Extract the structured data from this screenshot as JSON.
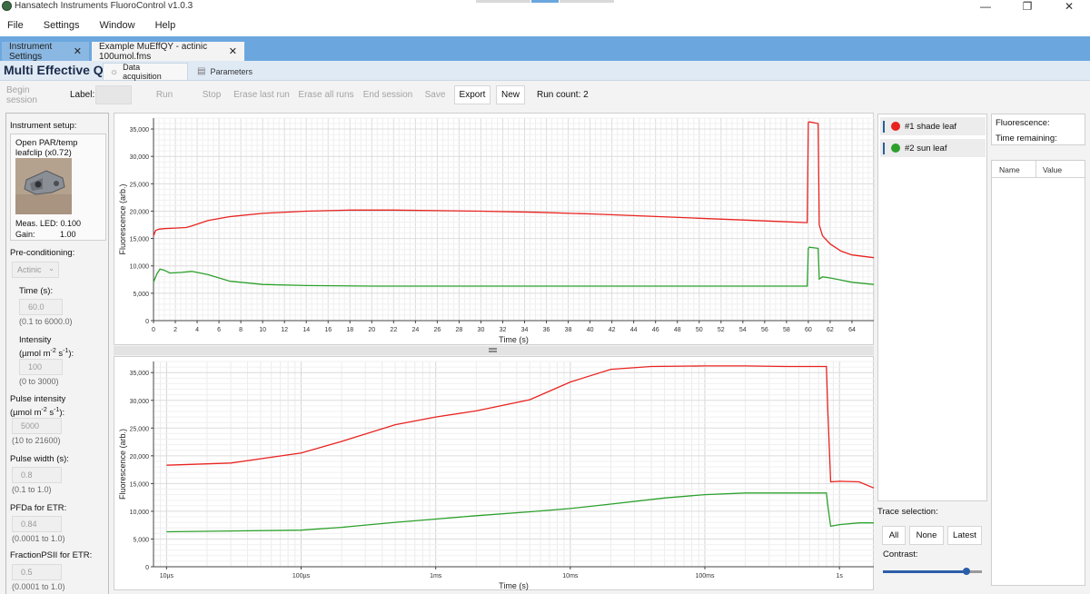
{
  "window": {
    "title": "Hansatech Instruments FluoroControl v1.0.3",
    "minimize": "—",
    "maximize": "❐",
    "close": "✕"
  },
  "menu": [
    "File",
    "Settings",
    "Window",
    "Help"
  ],
  "doc_tabs": [
    {
      "label": "Instrument Settings",
      "close": "✕"
    },
    {
      "label": "Example MuEffQY - actinic 100umol.fms",
      "close": "✕"
    }
  ],
  "page_title": "Multi Effective QY",
  "sub_tabs": [
    {
      "label": "Data acquisition",
      "icon": "lightbulb-icon",
      "glyph": "☼"
    },
    {
      "label": "Parameters",
      "icon": "grid-icon",
      "glyph": "▤"
    }
  ],
  "toolbar": {
    "begin_session": "Begin session",
    "label_text": "Label:",
    "run": "Run",
    "stop": "Stop",
    "erase_last_run": "Erase last run",
    "erase_all_runs": "Erase all runs",
    "end_session": "End session",
    "save": "Save",
    "export": "Export",
    "new": "New",
    "run_count": "Run count: 2"
  },
  "sidebar": {
    "instrument_setup_label": "Instrument setup:",
    "setup_name": "Open PAR/temp leafclip (x0.72)",
    "meas_led": "Meas. LED: 0.100",
    "gain_label": "Gain:",
    "gain_value": "1.00",
    "preconditioning_label": "Pre-conditioning:",
    "preconditioning_value": "Actinic",
    "time_label": "Time (s):",
    "time_value": "60.0",
    "time_range": "(0.1 to 6000.0)",
    "intensity_label_1": "Intensity",
    "intensity_label_2a": "(µmol m",
    "intensity_label_2b": "-2",
    "intensity_label_2c": " s",
    "intensity_label_2d": "-1",
    "intensity_label_2e": "):",
    "intensity_value": "100",
    "intensity_range": "(0 to 3000)",
    "pulse_intensity_label_1": "Pulse intensity",
    "pulse_intensity_value": "5000",
    "pulse_intensity_range": "(10 to 21600)",
    "pulse_width_label": "Pulse width (s):",
    "pulse_width_value": "0.8",
    "pulse_width_range": "(0.1 to 1.0)",
    "pfda_label": "PFDa for ETR:",
    "pfda_value": "0.84",
    "pfda_range": "(0.0001 to 1.0)",
    "fraction_label": "FractionPSII for ETR:",
    "fraction_value": "0.5",
    "fraction_range": "(0.0001 to 1.0)"
  },
  "legend": [
    {
      "label": "#1 shade leaf",
      "color": "#e8231f"
    },
    {
      "label": "#2 sun leaf",
      "color": "#2ca02c"
    }
  ],
  "trace_selection": {
    "label": "Trace selection:",
    "all": "All",
    "none": "None",
    "latest": "Latest",
    "contrast": "Contrast:",
    "contrast_level": 0.84
  },
  "info": {
    "fluorescence": "Fluorescence:",
    "time_remaining": "Time remaining:"
  },
  "table": {
    "columns": [
      "Name",
      "Value"
    ]
  },
  "chart_data": [
    {
      "type": "line",
      "xlabel": "Time (s)",
      "ylabel": "Fluorescence (arb.)",
      "xlim": [
        0,
        66
      ],
      "ylim": [
        0,
        37000
      ],
      "x_ticks": [
        0,
        2,
        4,
        6,
        8,
        10,
        12,
        14,
        16,
        18,
        20,
        22,
        24,
        26,
        28,
        30,
        32,
        34,
        36,
        38,
        40,
        42,
        44,
        46,
        48,
        50,
        52,
        54,
        56,
        58,
        60,
        62,
        64
      ],
      "y_ticks": [
        0,
        5000,
        10000,
        15000,
        20000,
        25000,
        30000,
        35000
      ],
      "y_tick_labels": [
        "0",
        "5,000",
        "10,000",
        "15,000",
        "20,000",
        "25,000",
        "30,000",
        "35,000"
      ],
      "grid": true,
      "series": [
        {
          "name": "#1 shade leaf",
          "color": "#e8231f",
          "x": [
            0,
            0.2,
            0.5,
            1,
            2,
            3,
            3.5,
            5,
            7,
            10,
            14,
            18,
            22,
            26,
            30,
            35,
            40,
            45,
            50,
            55,
            58,
            59.9,
            60,
            60.1,
            60.9,
            61,
            61.3,
            62,
            63,
            64,
            66
          ],
          "y": [
            15500,
            16500,
            16700,
            16800,
            16900,
            17000,
            17300,
            18300,
            19000,
            19600,
            20000,
            20200,
            20200,
            20100,
            20000,
            19800,
            19500,
            19100,
            18700,
            18300,
            18050,
            17900,
            36200,
            36300,
            36000,
            17500,
            15500,
            14000,
            12700,
            12000,
            11500
          ]
        },
        {
          "name": "#2 sun leaf",
          "color": "#2ca02c",
          "x": [
            0,
            0.3,
            0.6,
            1,
            1.5,
            2.5,
            3.5,
            5,
            7,
            10,
            14,
            20,
            30,
            40,
            50,
            58,
            59.9,
            60,
            60.1,
            60.9,
            61,
            61.3,
            62,
            63,
            64,
            66
          ],
          "y": [
            7000,
            8500,
            9400,
            9200,
            8700,
            8800,
            9000,
            8400,
            7200,
            6600,
            6400,
            6300,
            6300,
            6300,
            6300,
            6300,
            6300,
            13200,
            13400,
            13200,
            7600,
            8000,
            7800,
            7400,
            7000,
            6600
          ]
        }
      ]
    },
    {
      "type": "line",
      "xscale": "log",
      "xlabel": "Time (s)",
      "ylabel": "Fluorescence (arb.)",
      "xlim": [
        8e-06,
        1.8
      ],
      "ylim": [
        0,
        37000
      ],
      "x_tick_values": [
        1e-05,
        0.0001,
        0.001,
        0.01,
        0.1,
        1
      ],
      "x_tick_labels": [
        "10µs",
        "100µs",
        "1ms",
        "10ms",
        "100ms",
        "1s"
      ],
      "y_ticks": [
        0,
        5000,
        10000,
        15000,
        20000,
        25000,
        30000,
        35000
      ],
      "y_tick_labels": [
        "0",
        "5,000",
        "10,000",
        "15,000",
        "20,000",
        "25,000",
        "30,000",
        "35,000"
      ],
      "grid": true,
      "series": [
        {
          "name": "#1 shade leaf",
          "color": "#e8231f",
          "x": [
            1e-05,
            3e-05,
            0.0001,
            0.0002,
            0.0005,
            0.001,
            0.002,
            0.005,
            0.01,
            0.02,
            0.04,
            0.1,
            0.2,
            0.4,
            0.6,
            0.8,
            0.82,
            0.86,
            1.0,
            1.4,
            1.8
          ],
          "y": [
            18300,
            18700,
            20500,
            22600,
            25600,
            27000,
            28100,
            30100,
            33300,
            35600,
            36100,
            36200,
            36200,
            36100,
            36100,
            36100,
            28000,
            15300,
            15400,
            15300,
            14200
          ]
        },
        {
          "name": "#2 sun leaf",
          "color": "#2ca02c",
          "x": [
            1e-05,
            0.0001,
            0.0002,
            0.0005,
            0.001,
            0.002,
            0.005,
            0.01,
            0.02,
            0.05,
            0.1,
            0.2,
            0.4,
            0.8,
            0.82,
            0.86,
            1.0,
            1.4,
            1.8
          ],
          "y": [
            6300,
            6600,
            7100,
            8000,
            8600,
            9200,
            9900,
            10500,
            11300,
            12400,
            13000,
            13300,
            13300,
            13300,
            11000,
            7300,
            7600,
            7900,
            7900
          ]
        }
      ]
    }
  ]
}
